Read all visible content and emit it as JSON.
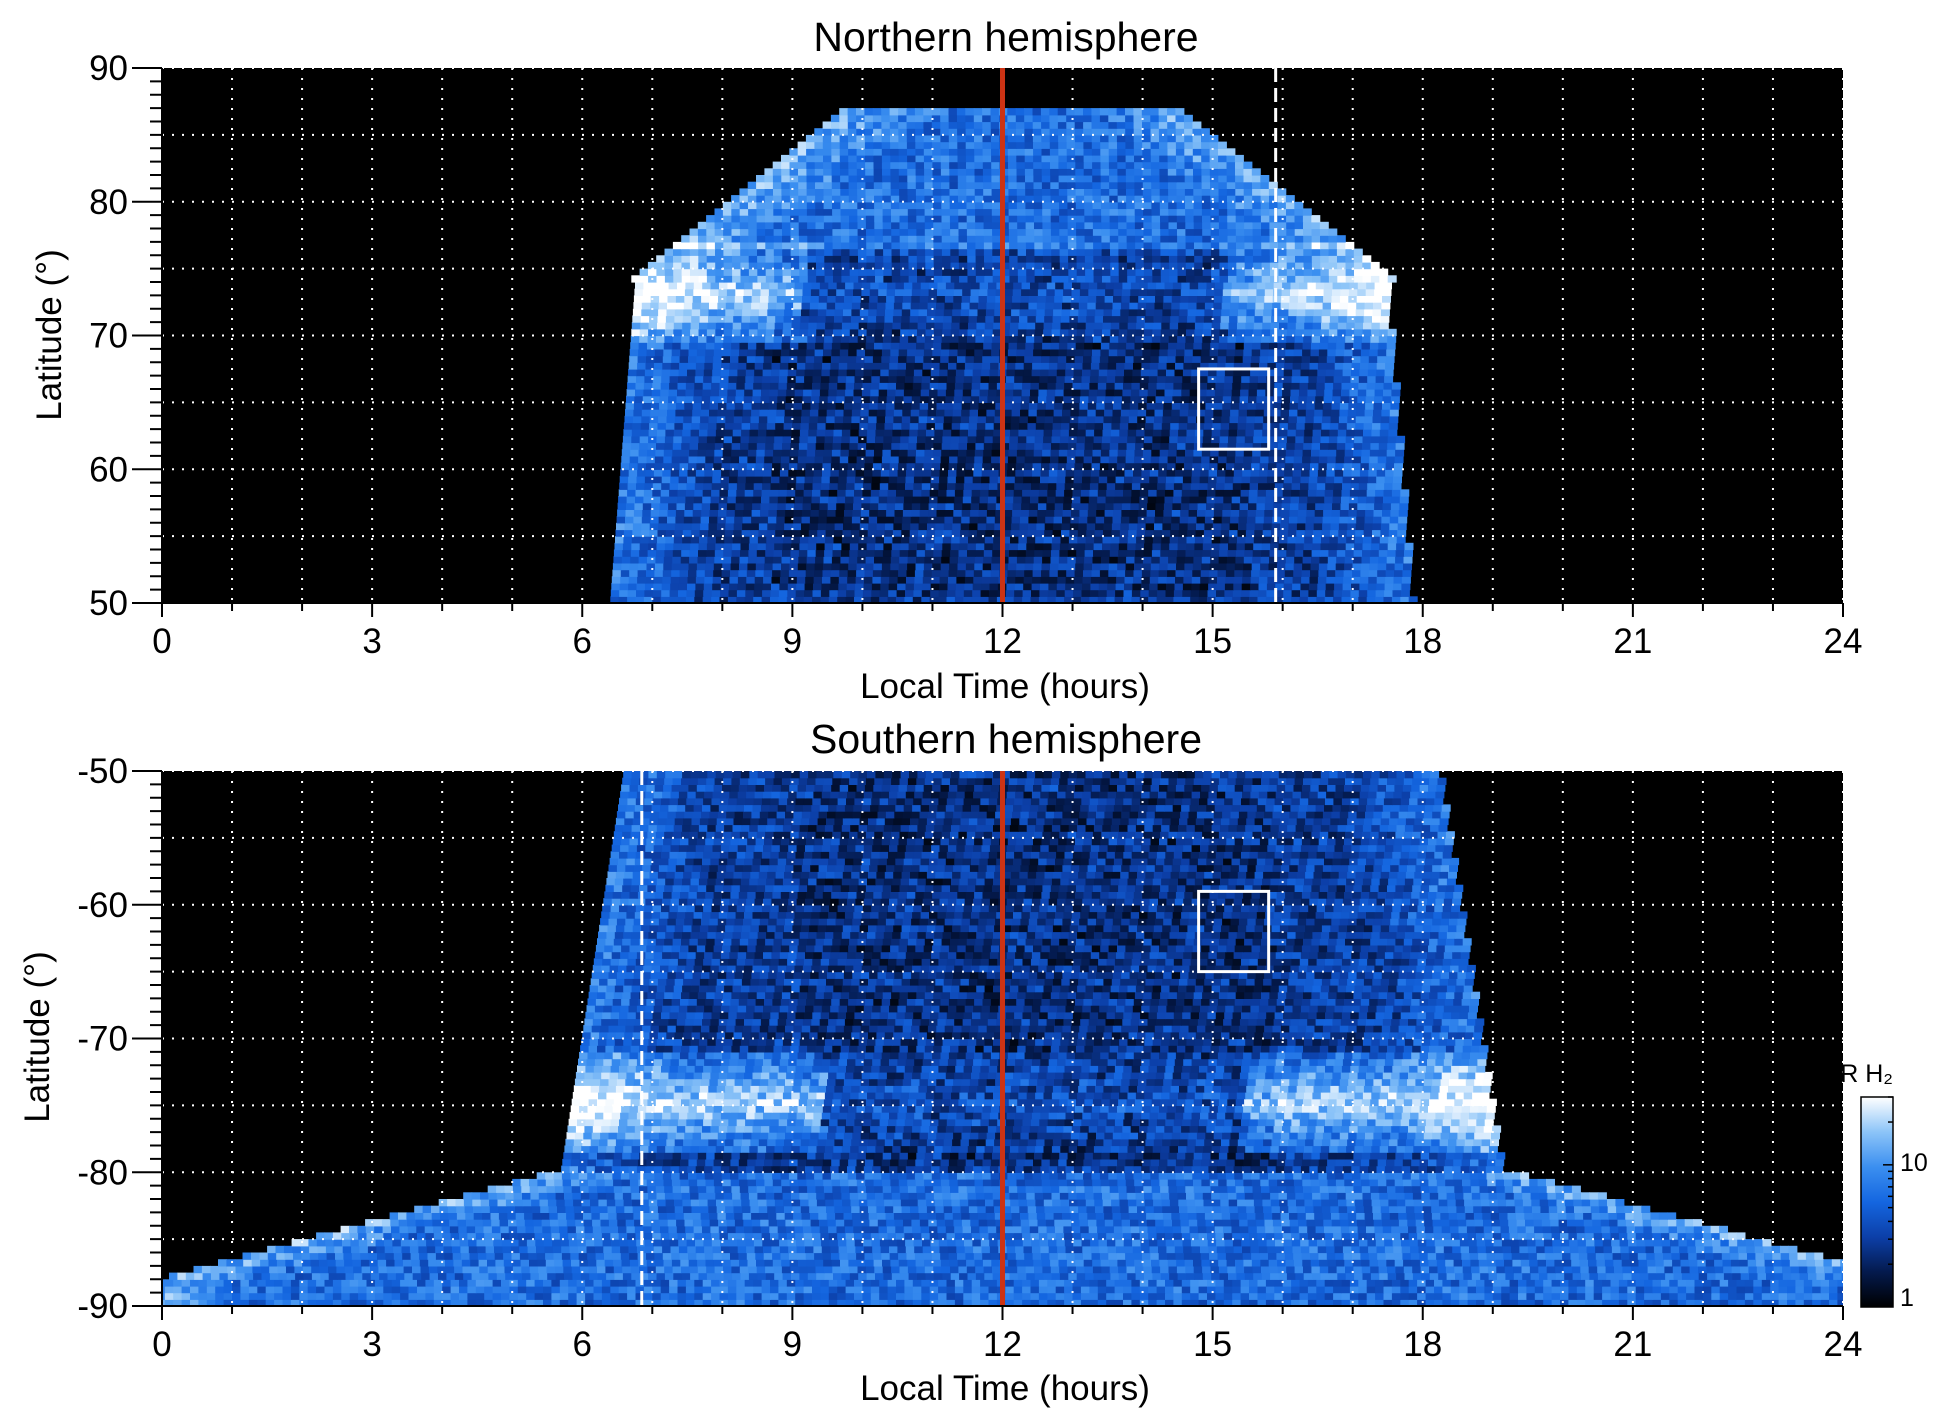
{
  "colors": {
    "background": "#000000",
    "noon_line": "#cc3314",
    "grid": "#ffffff",
    "colormap": [
      "#000000",
      "#041a4d",
      "#0c3fa8",
      "#1466e0",
      "#3b8ff0",
      "#8cc4f8",
      "#ffffff"
    ]
  },
  "chart_data": [
    {
      "type": "heatmap",
      "title": "Northern hemisphere",
      "xlabel": "Local Time (hours)",
      "ylabel": "Latitude (°)",
      "xlim": [
        0,
        24
      ],
      "ylim": [
        50,
        90
      ],
      "xticks": [
        "0",
        "3",
        "6",
        "9",
        "12",
        "15",
        "18",
        "21",
        "24"
      ],
      "yticks": [
        "50",
        "60",
        "70",
        "80",
        "90"
      ],
      "grid": "dotted every 1 h and 5°",
      "noon_line_local_time": 12,
      "dashed_line_local_time": 15.9,
      "box": {
        "local_time": [
          14.8,
          15.8
        ],
        "latitude": [
          61.5,
          67.5
        ]
      },
      "emission_region": {
        "local_time": [
          6.4,
          17.9
        ],
        "latitude": [
          50,
          87
        ]
      },
      "bright_oval": {
        "dawn_peak": {
          "local_time": 8.0,
          "latitude": 73
        },
        "dusk_peak": {
          "local_time": 16.0,
          "latitude": 73
        }
      }
    },
    {
      "type": "heatmap",
      "title": "Southern hemisphere",
      "xlabel": "Local Time (hours)",
      "ylabel": "Latitude (°)",
      "xlim": [
        0,
        24
      ],
      "ylim": [
        -90,
        -50
      ],
      "xticks": [
        "0",
        "3",
        "6",
        "9",
        "12",
        "15",
        "18",
        "21",
        "24"
      ],
      "yticks": [
        "-50",
        "-60",
        "-70",
        "-80",
        "-90"
      ],
      "grid": "dotted every 1 h and 5°",
      "noon_line_local_time": 12,
      "dashed_line_local_time": 6.85,
      "box": {
        "local_time": [
          14.8,
          15.8
        ],
        "latitude": [
          -65,
          -59
        ]
      },
      "emission_region": {
        "local_time": [
          5.8,
          19.0
        ],
        "latitude": [
          -90,
          -50
        ]
      },
      "bright_oval": {
        "dawn_peak": {
          "local_time": 7.0,
          "latitude": -74
        },
        "dusk_peak": {
          "local_time": 16.5,
          "latitude": -79
        }
      }
    }
  ],
  "colorbar": {
    "label": "kR H₂",
    "scale": "log",
    "range": [
      1,
      30
    ],
    "tick_labels": [
      "10",
      "1"
    ]
  }
}
